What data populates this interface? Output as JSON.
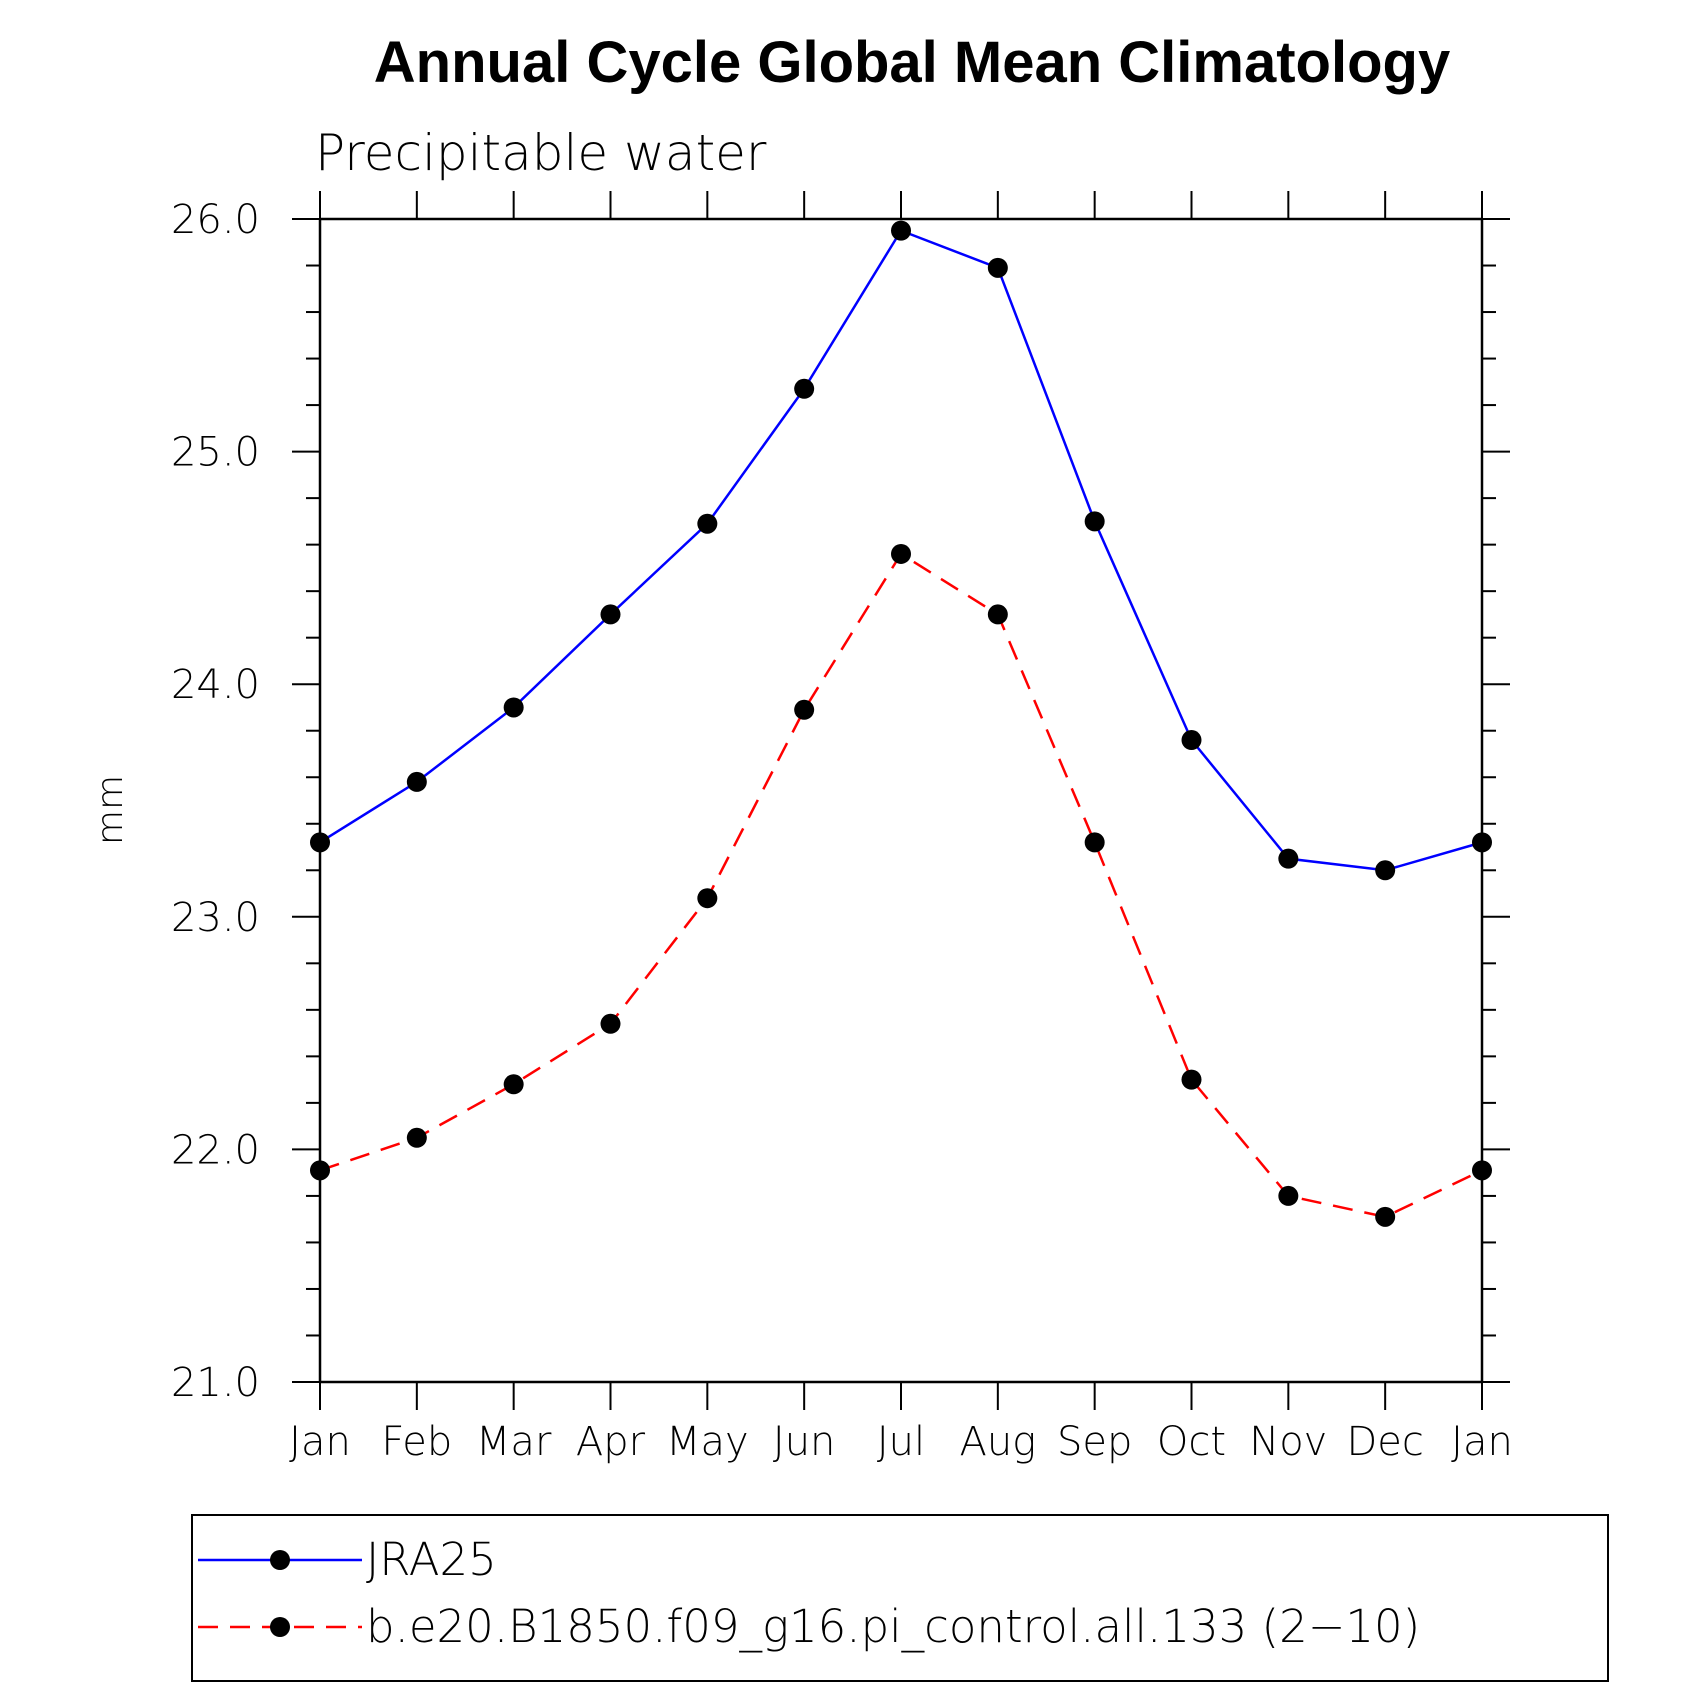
{
  "chart_data": {
    "type": "line",
    "title": "Annual Cycle Global Mean Climatology",
    "subtitle": "Precipitable water",
    "xlabel": "",
    "ylabel": "mm",
    "categories": [
      "Jan",
      "Feb",
      "Mar",
      "Apr",
      "May",
      "Jun",
      "Jul",
      "Aug",
      "Sep",
      "Oct",
      "Nov",
      "Dec",
      "Jan"
    ],
    "ylim": [
      21.0,
      26.0
    ],
    "y_major_ticks": [
      "21.0",
      "22.0",
      "23.0",
      "24.0",
      "25.0",
      "26.0"
    ],
    "y_major_tick_values": [
      21.0,
      22.0,
      23.0,
      24.0,
      25.0,
      26.0
    ],
    "y_minor_step": 0.2,
    "grid": false,
    "legend_position": "bottom",
    "series": [
      {
        "name": "JRA25",
        "color": "#0000ff",
        "line_style": "solid",
        "marker": "filled-circle",
        "values": [
          23.32,
          23.58,
          23.9,
          24.3,
          24.69,
          25.27,
          25.95,
          25.79,
          24.7,
          23.76,
          23.25,
          23.2,
          23.32
        ]
      },
      {
        "name": "b.e20.B1850.f09_g16.pi_control.all.133 (2−10)",
        "color": "#ff0000",
        "line_style": "dashed",
        "marker": "filled-circle",
        "values": [
          21.91,
          22.05,
          22.28,
          22.54,
          23.08,
          23.89,
          24.56,
          24.3,
          23.32,
          22.3,
          21.8,
          21.71,
          21.91
        ]
      }
    ]
  }
}
